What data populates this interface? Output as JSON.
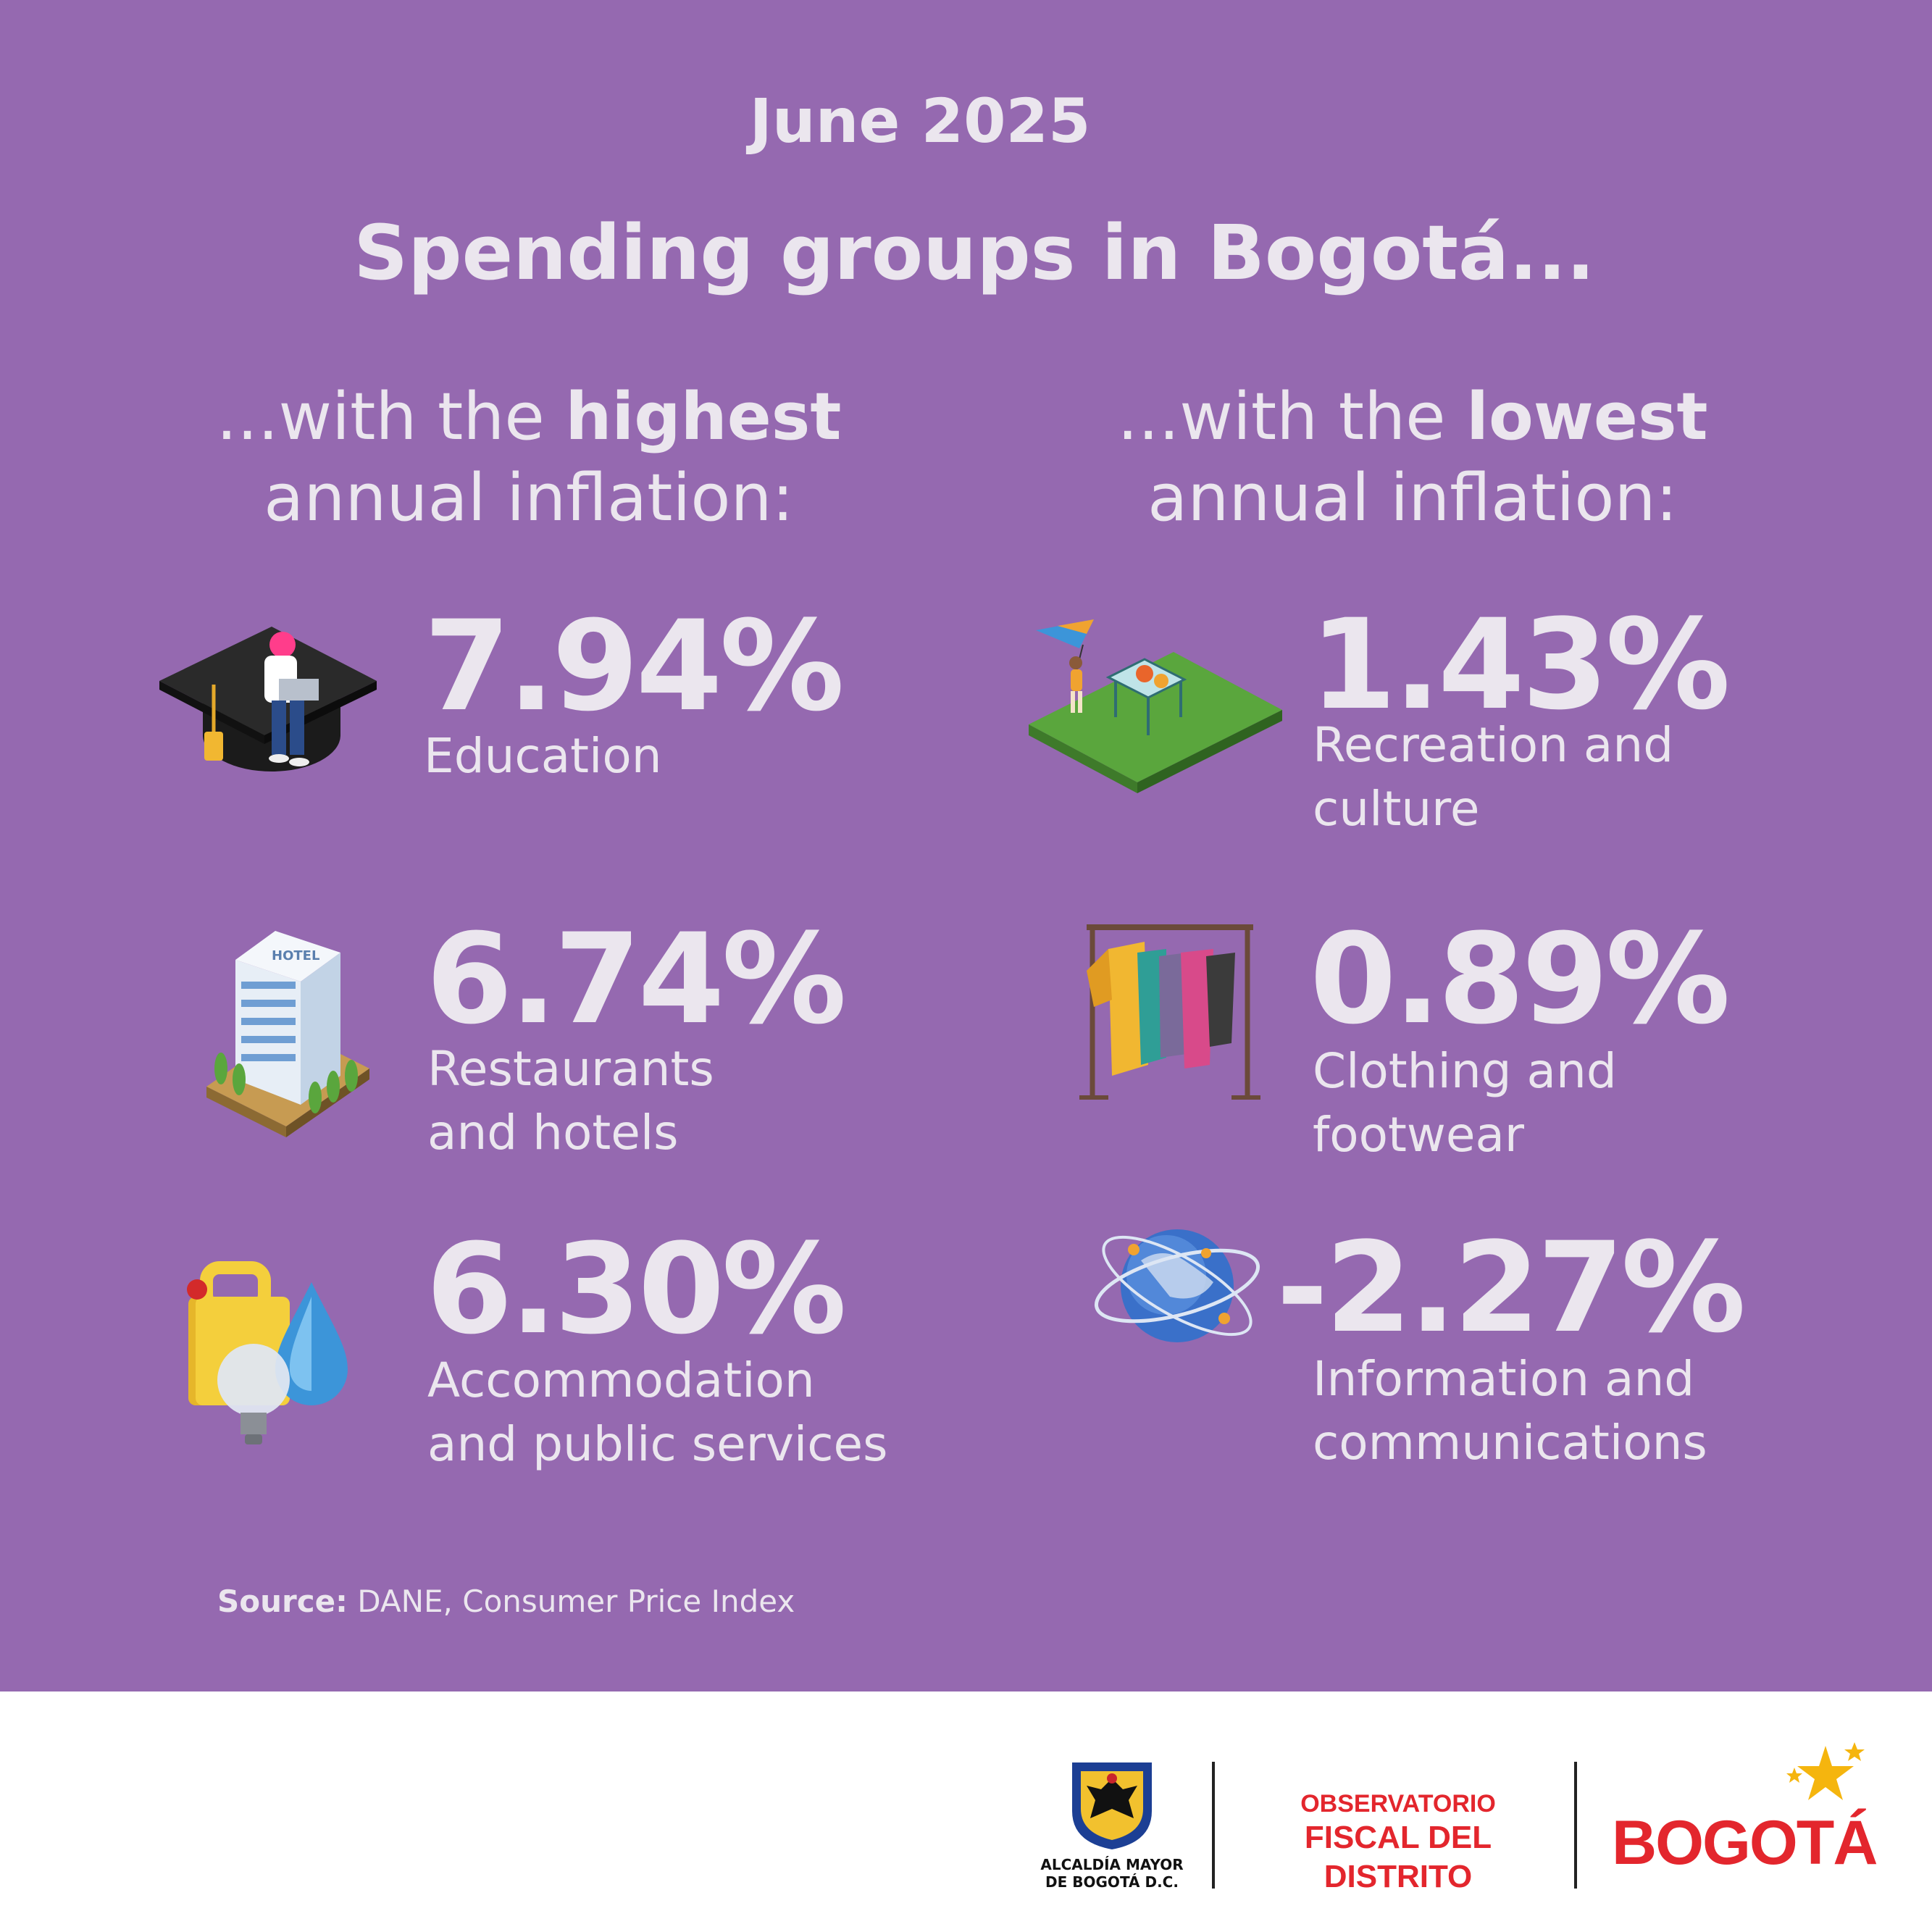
{
  "header": {
    "date": "June 2025",
    "title": "Spending groups in Bogotá..."
  },
  "highest": {
    "intro": "...with the ",
    "emphasis": "highest",
    "line2": "annual inflation:",
    "items": [
      {
        "value": "7.94%",
        "label_line1": "Education",
        "label_line2": "",
        "icon": "graduation-cap-icon"
      },
      {
        "value": "6.74%",
        "label_line1": "Restaurants",
        "label_line2": "and hotels",
        "icon": "hotel-building-icon"
      },
      {
        "value": "6.30%",
        "label_line1": "Accommodation",
        "label_line2": "and public services",
        "icon": "utilities-icon"
      }
    ]
  },
  "lowest": {
    "intro": "...with the ",
    "emphasis": "lowest",
    "line2": "annual inflation:",
    "items": [
      {
        "value": "1.43%",
        "label_line1": "Recreation and",
        "label_line2": "culture",
        "icon": "park-picnic-icon"
      },
      {
        "value": "0.89%",
        "label_line1": "Clothing and",
        "label_line2": "footwear",
        "icon": "clothing-rack-icon"
      },
      {
        "value": "-2.27%",
        "label_line1": "Information and",
        "label_line2": "communications",
        "icon": "globe-network-icon"
      }
    ]
  },
  "source": {
    "label": "Source:",
    "text": " DANE, Consumer Price Index"
  },
  "footer": {
    "alcaldia_line1": "ALCALDÍA MAYOR",
    "alcaldia_line2": "DE BOGOTÁ D.C.",
    "observatorio_line1": "OBSERVATORIO",
    "observatorio_line2": "FISCAL DEL DISTRITO",
    "bogota_wordmark": "BOGOTÁ"
  },
  "colors": {
    "background": "#9569b0",
    "text": "#ebe6ee",
    "footer_red": "#e3262d"
  }
}
